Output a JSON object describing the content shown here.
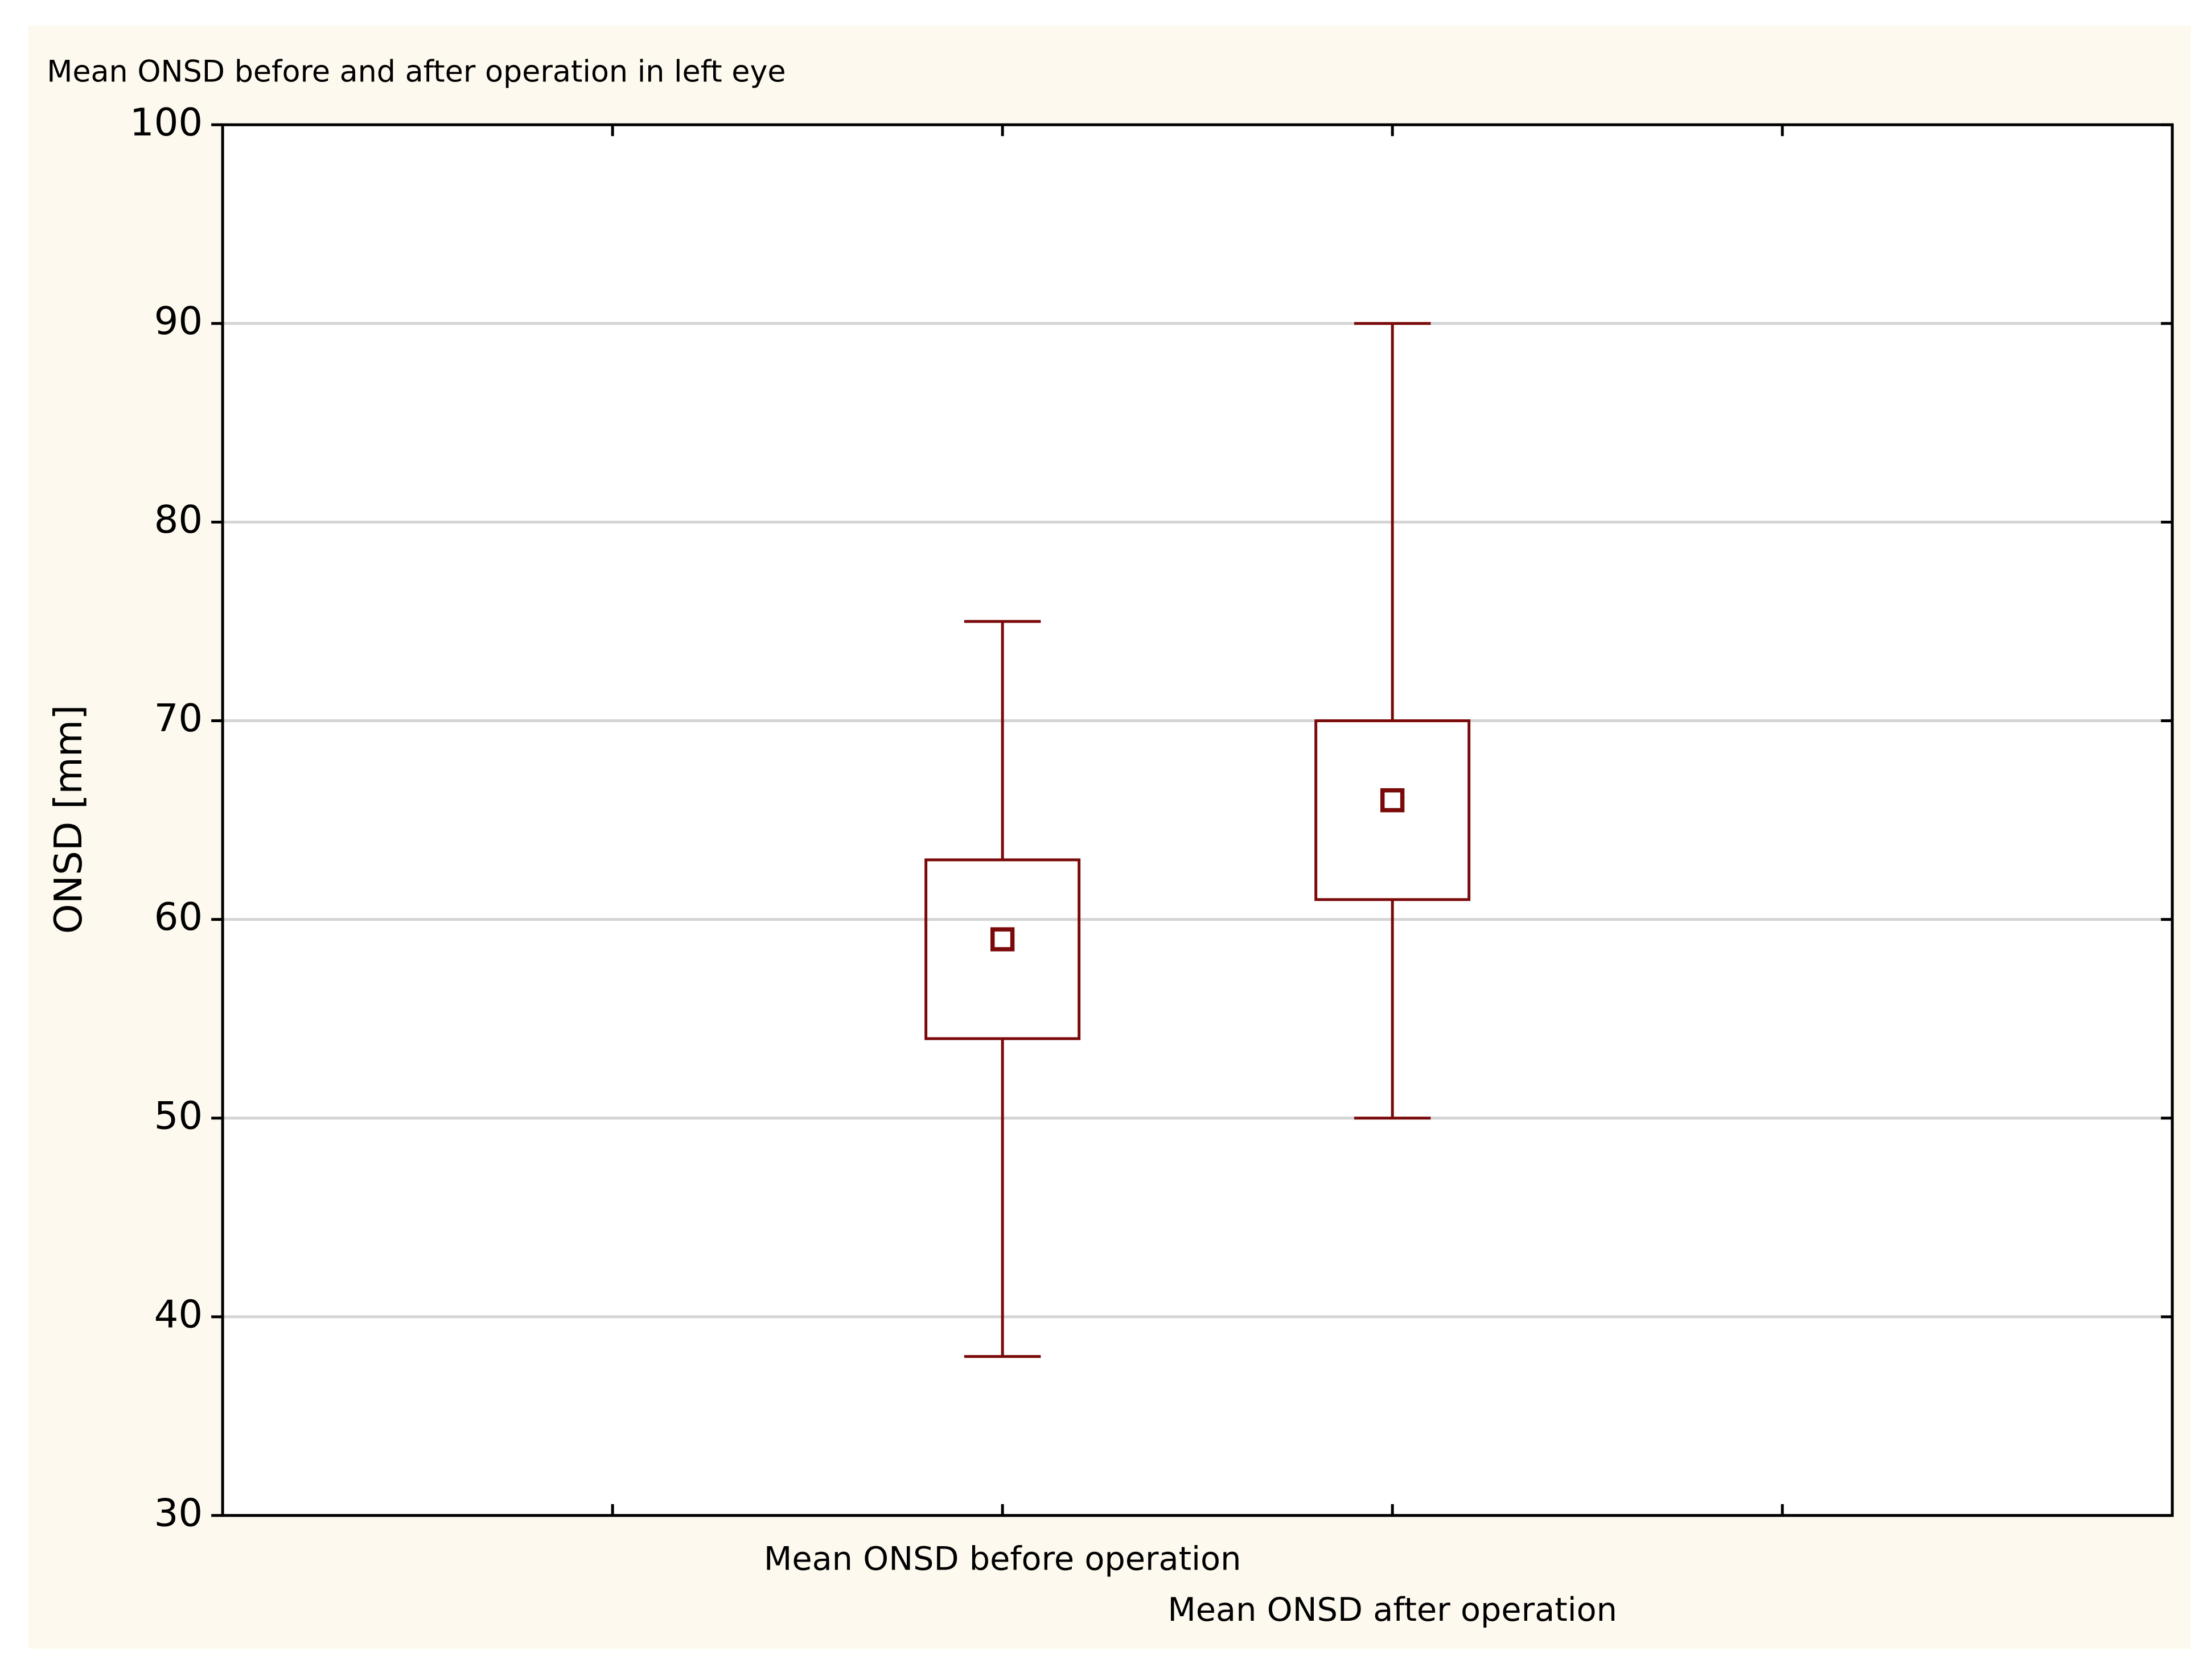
{
  "chart_data": {
    "type": "box",
    "title": "Mean ONSD before and after operation in left eye",
    "y_label": "ONSD [mm]",
    "categories": [
      "Mean ONSD before operation",
      "Mean ONSD after operation"
    ],
    "boxes": [
      {
        "whisker_low": 38,
        "box_low": 54,
        "center": 59,
        "box_high": 63,
        "whisker_high": 75
      },
      {
        "whisker_low": 50,
        "box_low": 61,
        "center": 66,
        "box_high": 70,
        "whisker_high": 90
      }
    ],
    "color": "#7a0a0a",
    "ylim": [
      30,
      100
    ],
    "yticks": [
      30,
      40,
      50,
      60,
      70,
      80,
      90,
      100
    ],
    "grid": true
  }
}
